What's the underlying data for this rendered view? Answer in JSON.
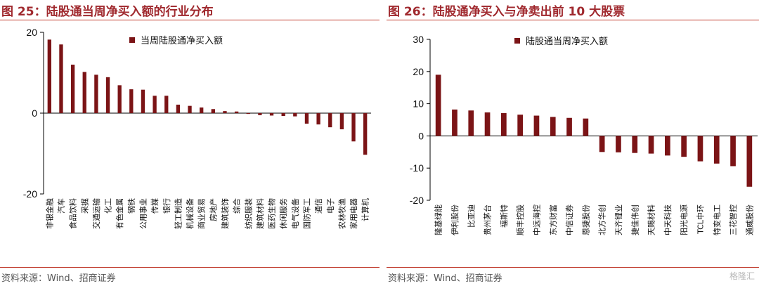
{
  "left": {
    "title": "图 25：陆股通当周净买入额的行业分布",
    "source": "资料来源：Wind、招商证券"
  },
  "right": {
    "title": "图 26：陆股通净买入与净卖出前 10 大股票",
    "source": "资料来源：Wind、招商证券",
    "watermark": "格隆汇"
  },
  "colors": {
    "bar": "#7b1416",
    "title": "#a0292e",
    "rule": "#c0392b"
  },
  "chart_data": [
    {
      "type": "bar",
      "title": "",
      "xlabel": "",
      "ylabel": "",
      "ylim": [
        -20,
        20
      ],
      "yticks": [
        -20,
        0,
        20
      ],
      "legend": "top-right",
      "grid": false,
      "categories": [
        "非银金融",
        "汽车",
        "食品饮料",
        "采掘",
        "交通运输",
        "化工",
        "有色金属",
        "钢铁",
        "公用事业",
        "传媒",
        "银行",
        "轻工制造",
        "机械设备",
        "商业贸易",
        "房地产",
        "建筑装饰",
        "综合",
        "纺织服装",
        "建筑材料",
        "医药生物",
        "休闲服务",
        "电气设备",
        "国防军工",
        "通信",
        "电子",
        "农林牧渔",
        "家用电器",
        "计算机"
      ],
      "series": [
        {
          "name": "当周陆股通净买入额",
          "values": [
            18.2,
            17.0,
            12.0,
            10.2,
            9.5,
            8.9,
            6.9,
            5.9,
            5.8,
            4.3,
            4.3,
            2.1,
            1.8,
            1.4,
            1.0,
            0.5,
            0.4,
            -0.2,
            -0.5,
            -0.6,
            -0.7,
            -0.8,
            -2.6,
            -2.8,
            -3.5,
            -4.0,
            -7.0,
            -10.3
          ]
        }
      ]
    },
    {
      "type": "bar",
      "title": "",
      "xlabel": "",
      "ylabel": "",
      "ylim": [
        -20,
        30
      ],
      "yticks": [
        -20,
        -10,
        0,
        10,
        20,
        30
      ],
      "legend": "top-right",
      "grid": false,
      "categories": [
        "隆基绿能",
        "伊利股份",
        "比亚迪",
        "贵州茅台",
        "福斯特",
        "顺丰控股",
        "中远海控",
        "东方财富",
        "中信证券",
        "恩捷股份",
        "北方华创",
        "天齐锂业",
        "捷佳伟创",
        "天赐材料",
        "中天科技",
        "阳光电源",
        "TCL中环",
        "特变电工",
        "三花智控",
        "通威股份"
      ],
      "series": [
        {
          "name": "陆股通当周净买入额",
          "values": [
            19.0,
            8.2,
            7.9,
            7.3,
            7.1,
            6.6,
            6.3,
            5.9,
            5.6,
            5.4,
            -5.0,
            -5.1,
            -5.3,
            -5.5,
            -6.1,
            -6.5,
            -7.9,
            -8.6,
            -9.4,
            -15.8
          ]
        }
      ]
    }
  ]
}
